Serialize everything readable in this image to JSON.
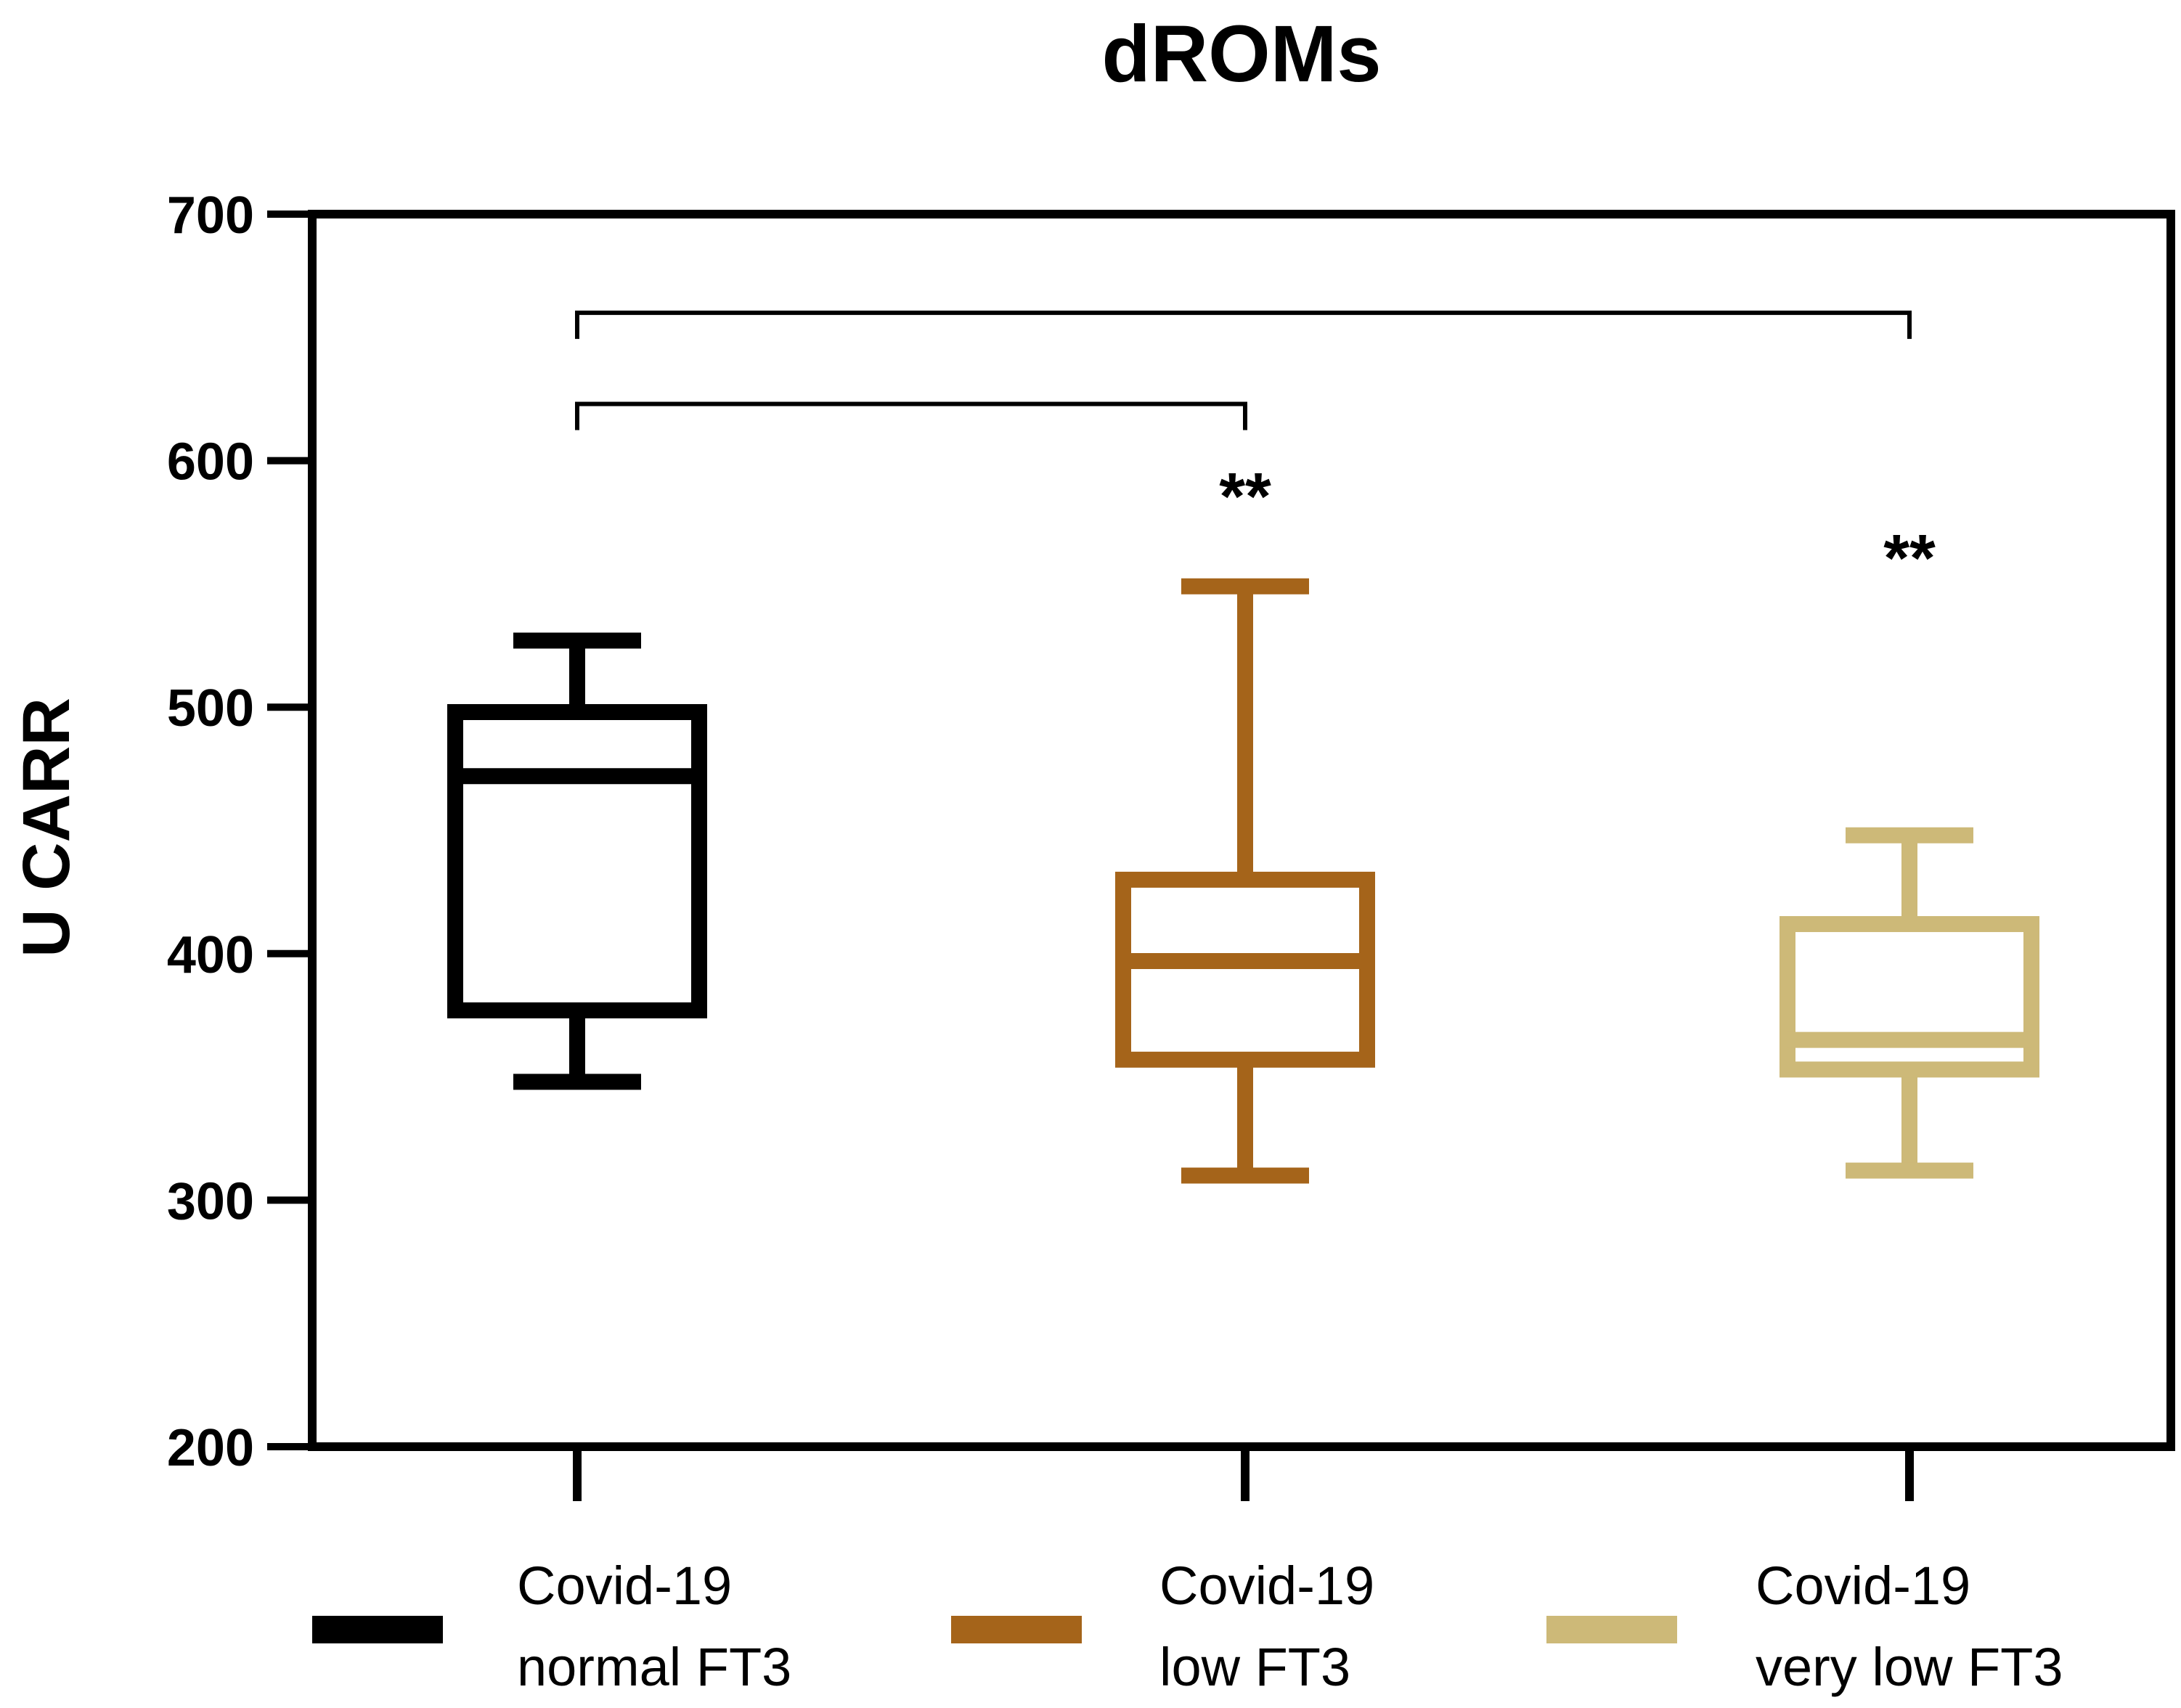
{
  "chart_data": {
    "type": "box",
    "title": "dROMs",
    "ylabel": "U CARR",
    "xlabel": "",
    "ylim": [
      200,
      700
    ],
    "yticks": [
      200,
      300,
      400,
      500,
      600,
      700
    ],
    "grid": false,
    "legend_position": "bottom",
    "groups": [
      {
        "label_line1": "Covid-19",
        "label_line2": "normal FT3",
        "color": "#000000",
        "whisker_low": 348,
        "q1": 377,
        "median": 472,
        "q3": 498,
        "whisker_high": 527
      },
      {
        "label_line1": "Covid-19",
        "label_line2": "low FT3",
        "color": "#A5641A",
        "whisker_low": 310,
        "q1": 357,
        "median": 397,
        "q3": 430,
        "whisker_high": 549
      },
      {
        "label_line1": "Covid-19",
        "label_line2": "very low FT3",
        "color": "#CDB978",
        "whisker_low": 312,
        "q1": 353,
        "median": 365,
        "q3": 412,
        "whisker_high": 448
      }
    ],
    "comparisons": [
      {
        "from": 0,
        "to": 1,
        "level": 623,
        "label": "**"
      },
      {
        "from": 0,
        "to": 2,
        "level": 660,
        "label": "**"
      }
    ],
    "significance_markers": [
      {
        "group": 1,
        "text": "**",
        "y": 585
      },
      {
        "group": 2,
        "text": "**",
        "y": 560
      }
    ]
  }
}
